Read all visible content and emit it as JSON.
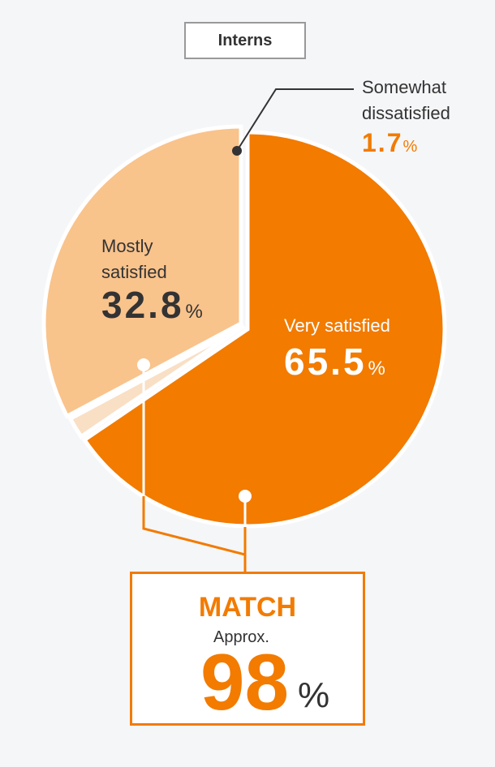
{
  "chart_data": {
    "type": "pie",
    "title": "Interns",
    "slices": [
      {
        "label": "Very satisfied",
        "value": 65.5,
        "color": "#f27b00"
      },
      {
        "label": "Somewhat dissatisfied",
        "value": 1.7,
        "color": "#f9dfc4"
      },
      {
        "label": "Mostly satisfied",
        "value": 32.8,
        "color": "#f9c38c"
      }
    ],
    "unit": "%"
  },
  "labels": {
    "very": {
      "name": "Very satisfied",
      "value": "65.5",
      "unit": "%"
    },
    "mostly": {
      "line1": "Mostly",
      "line2": "satisfied",
      "value": "32.8",
      "unit": "%"
    },
    "somewhat": {
      "line1": "Somewhat",
      "line2": "dissatisfied",
      "value": "1.7",
      "unit": "%"
    }
  },
  "match": {
    "title": "MATCH",
    "approx": "Approx.",
    "value": "98",
    "unit": "%"
  },
  "colors": {
    "accent": "#f27b00",
    "light": "#f9c38c",
    "pale": "#f9dfc4",
    "background": "#f5f6f8"
  }
}
